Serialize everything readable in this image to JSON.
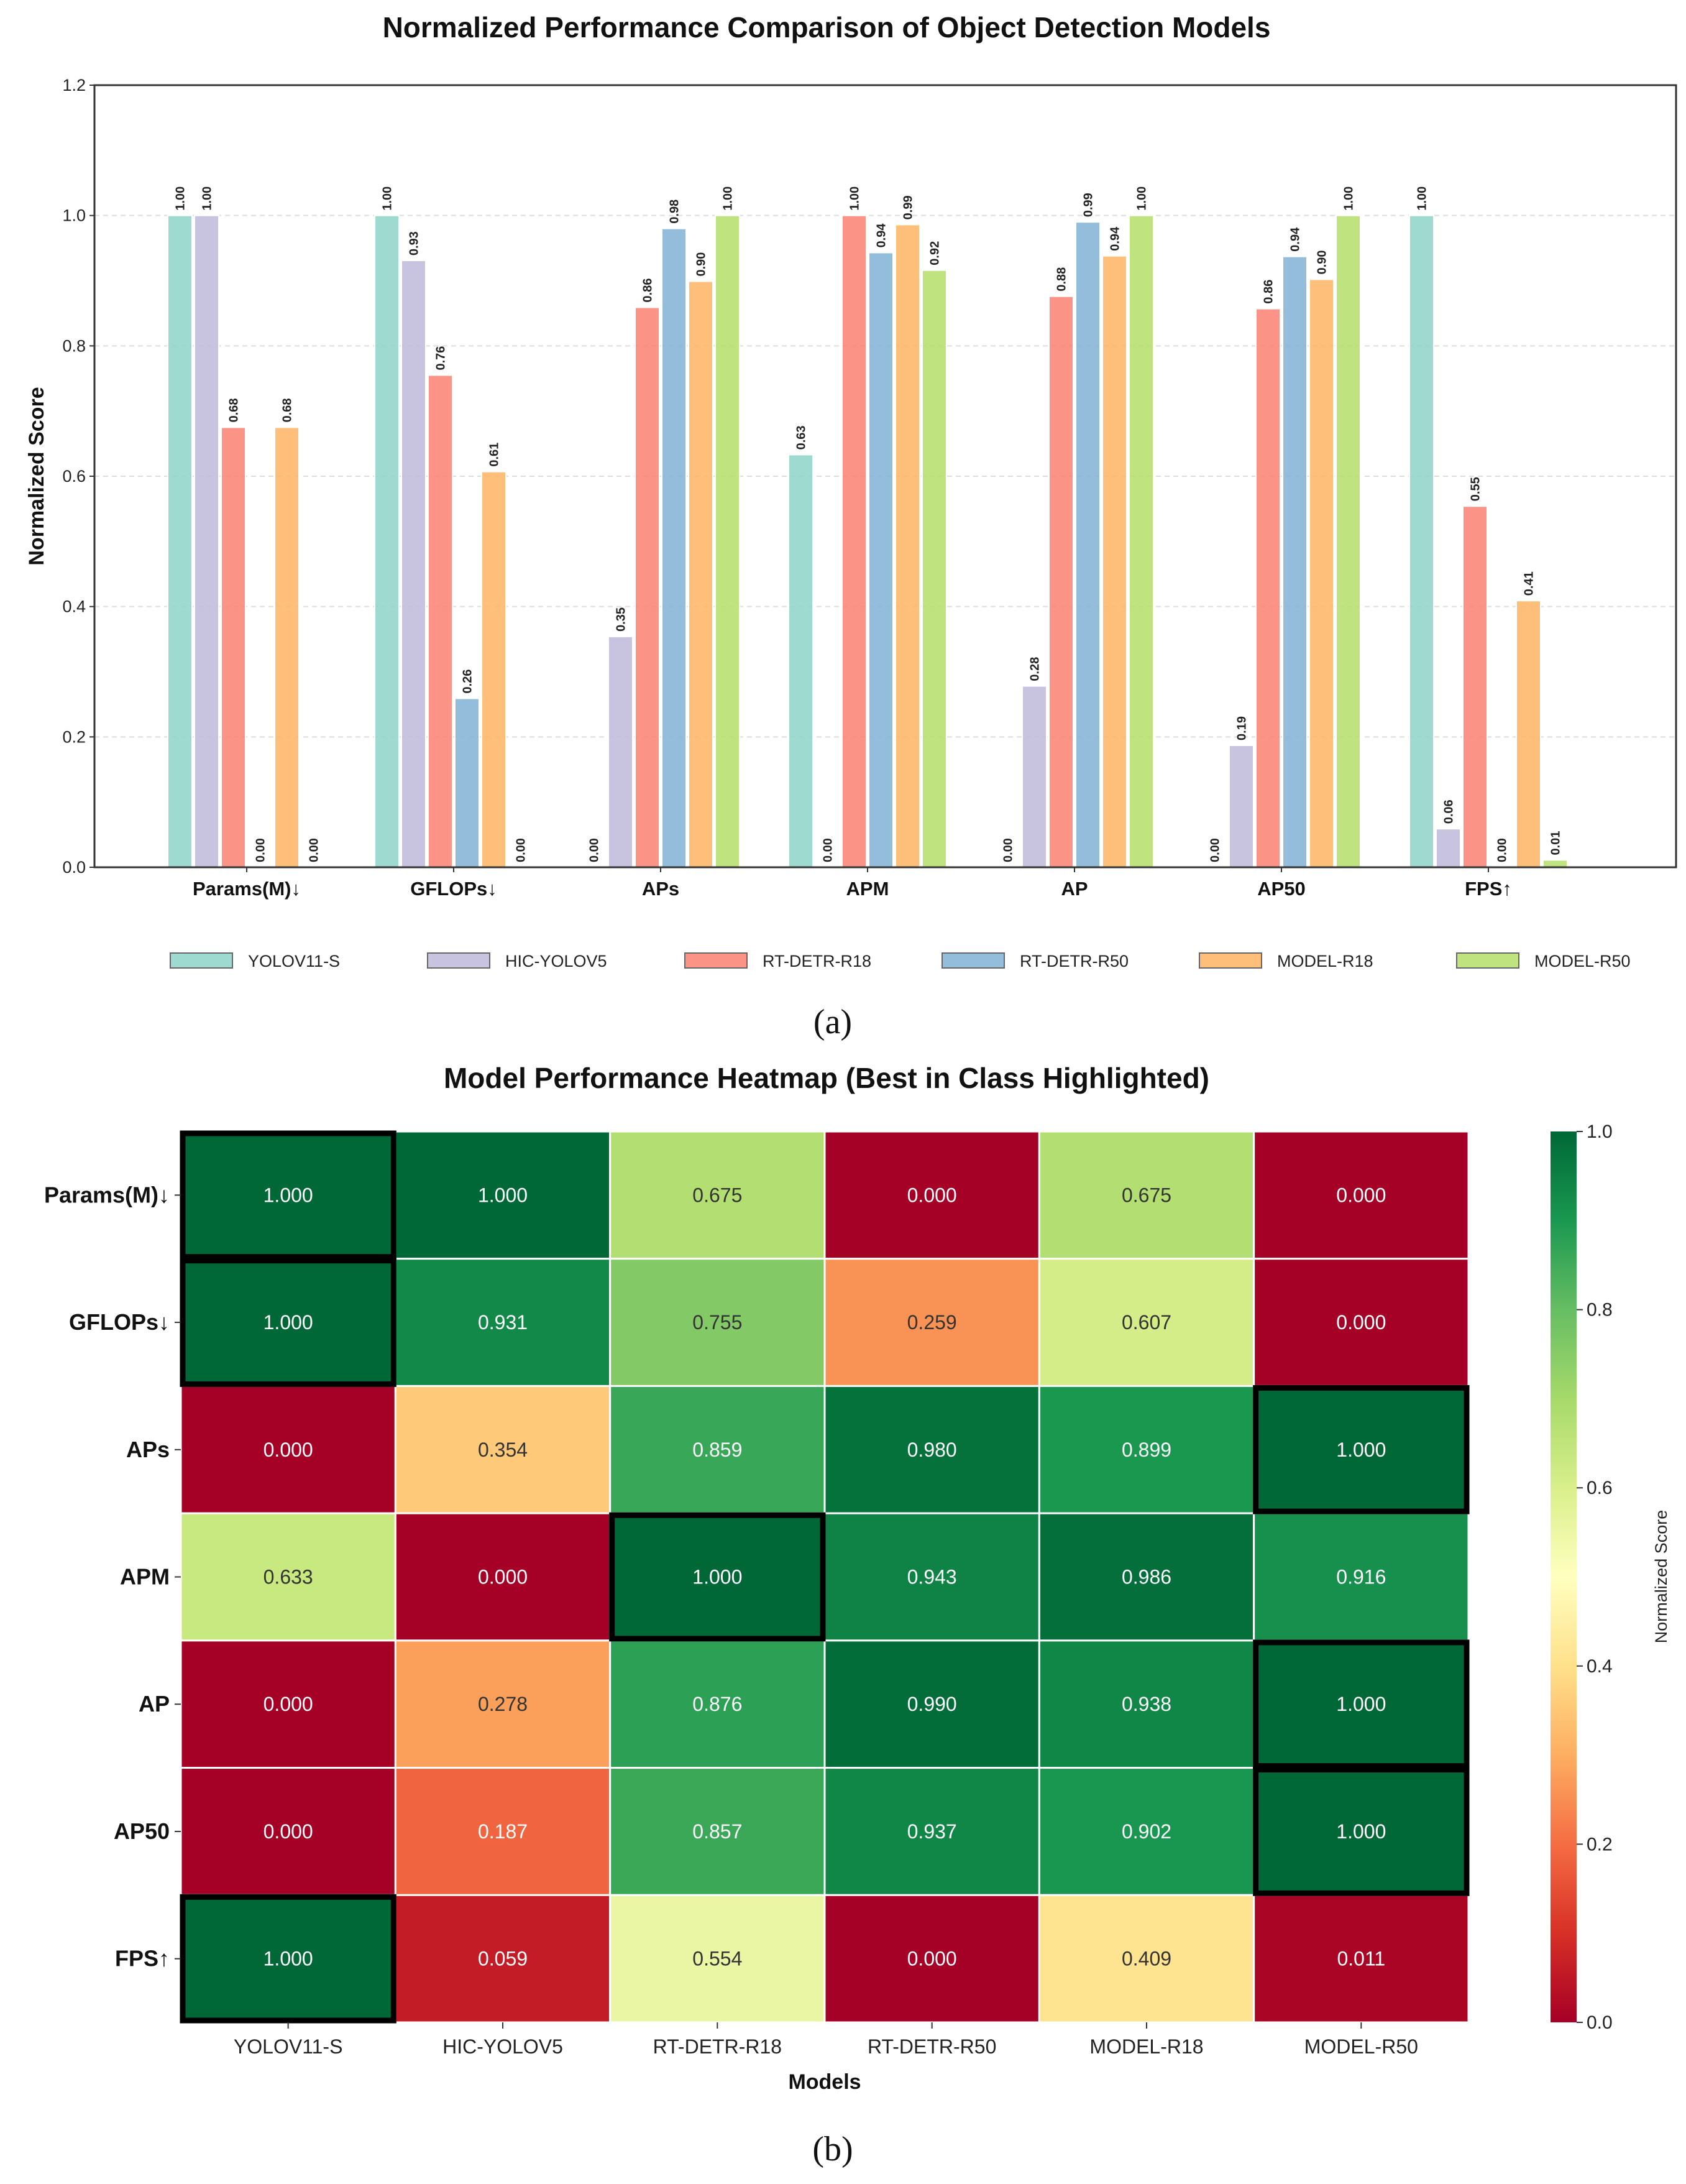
{
  "chart_data": [
    {
      "type": "bar",
      "title": "Normalized Performance Comparison of Object Detection Models",
      "xlabel": "",
      "ylabel": "Normalized Score",
      "ylim": [
        0,
        1.2
      ],
      "yticks": [
        "0.0",
        "0.2",
        "0.4",
        "0.6",
        "0.8",
        "1.0",
        "1.2"
      ],
      "grid": true,
      "legend_position": "bottom",
      "categories": [
        "Params(M)↓",
        "GFLOPs↓",
        "APs",
        "APM",
        "AP",
        "AP50",
        "FPS↑"
      ],
      "series": [
        {
          "name": "YOLOV11-S",
          "color": "#8dd3c7",
          "values": [
            1.0,
            1.0,
            0.0,
            0.633,
            0.0,
            0.0,
            1.0
          ]
        },
        {
          "name": "HIC-YOLOV5",
          "color": "#bebada",
          "values": [
            1.0,
            0.931,
            0.354,
            0.0,
            0.278,
            0.187,
            0.059
          ]
        },
        {
          "name": "RT-DETR-R18",
          "color": "#fb8072",
          "values": [
            0.675,
            0.755,
            0.859,
            1.0,
            0.876,
            0.857,
            0.554
          ]
        },
        {
          "name": "RT-DETR-R50",
          "color": "#80b1d3",
          "values": [
            0.0,
            0.259,
            0.98,
            0.943,
            0.99,
            0.937,
            0.0
          ]
        },
        {
          "name": "MODEL-R18",
          "color": "#fdb462",
          "values": [
            0.675,
            0.607,
            0.899,
            0.986,
            0.938,
            0.902,
            0.409
          ]
        },
        {
          "name": "MODEL-R50",
          "color": "#b3de69",
          "values": [
            0.0,
            0.0,
            1.0,
            0.916,
            1.0,
            1.0,
            0.011
          ]
        }
      ],
      "panel_label": "(a)"
    },
    {
      "type": "heatmap",
      "title": "Model Performance Heatmap (Best in Class Highlighted)",
      "xlabel": "Models",
      "colorbar_label": "Normalized Score",
      "colorbar_ticks": [
        "0.0",
        "0.2",
        "0.4",
        "0.6",
        "0.8",
        "1.0"
      ],
      "colormap": "RdYlGn",
      "x": [
        "YOLOV11-S",
        "HIC-YOLOV5",
        "RT-DETR-R18",
        "RT-DETR-R50",
        "MODEL-R18",
        "MODEL-R50"
      ],
      "y": [
        "Params(M)↓",
        "GFLOPs↓",
        "APs",
        "APM",
        "AP",
        "AP50",
        "FPS↑"
      ],
      "z": [
        [
          1.0,
          1.0,
          0.675,
          0.0,
          0.675,
          0.0
        ],
        [
          1.0,
          0.931,
          0.755,
          0.259,
          0.607,
          0.0
        ],
        [
          0.0,
          0.354,
          0.859,
          0.98,
          0.899,
          1.0
        ],
        [
          0.633,
          0.0,
          1.0,
          0.943,
          0.986,
          0.916
        ],
        [
          0.0,
          0.278,
          0.876,
          0.99,
          0.938,
          1.0
        ],
        [
          0.0,
          0.187,
          0.857,
          0.937,
          0.902,
          1.0
        ],
        [
          1.0,
          0.059,
          0.554,
          0.0,
          0.409,
          0.011
        ]
      ],
      "highlighted": [
        [
          0,
          0
        ],
        [
          1,
          0
        ],
        [
          2,
          5
        ],
        [
          3,
          2
        ],
        [
          4,
          5
        ],
        [
          5,
          5
        ],
        [
          6,
          0
        ]
      ],
      "panel_label": "(b)"
    }
  ]
}
